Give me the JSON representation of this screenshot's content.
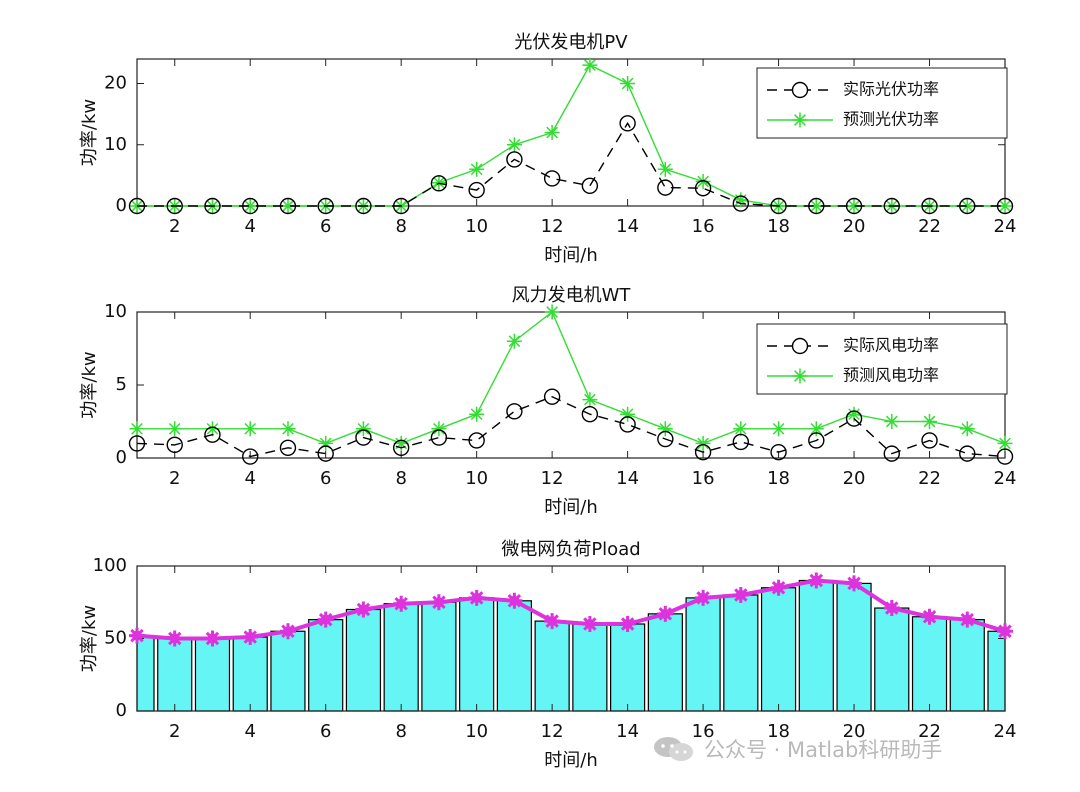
{
  "chart_data": [
    {
      "type": "line",
      "title": "光伏发电机PV",
      "xlabel": "时间/h",
      "ylabel": "功率/kw",
      "xlim": [
        1,
        24
      ],
      "ylim": [
        0,
        24
      ],
      "xticks": [
        2,
        4,
        6,
        8,
        10,
        12,
        14,
        16,
        18,
        20,
        22,
        24
      ],
      "yticks": [
        0,
        10,
        20
      ],
      "legend_position": "top-right",
      "x": [
        1,
        2,
        3,
        4,
        5,
        6,
        7,
        8,
        9,
        10,
        11,
        12,
        13,
        14,
        15,
        16,
        17,
        18,
        19,
        20,
        21,
        22,
        23,
        24
      ],
      "series": [
        {
          "name": "实际光伏功率",
          "style": "black-dashed-circle",
          "color": "#000000",
          "values": [
            0,
            0,
            0,
            0,
            0,
            0,
            0,
            0,
            3.7,
            2.6,
            7.6,
            4.5,
            3.3,
            13.5,
            3.0,
            2.9,
            0.4,
            0,
            0,
            0,
            0,
            0,
            0,
            0
          ]
        },
        {
          "name": "预测光伏功率",
          "style": "green-solid-star",
          "color": "#33dd33",
          "values": [
            0,
            0,
            0,
            0,
            0,
            0,
            0,
            0,
            3.8,
            6.0,
            10.0,
            12.0,
            23.0,
            20.0,
            6.0,
            4.0,
            1.0,
            0,
            0,
            0,
            0,
            0,
            0,
            0
          ]
        }
      ]
    },
    {
      "type": "line",
      "title": "风力发电机WT",
      "xlabel": "时间/h",
      "ylabel": "功率/kw",
      "xlim": [
        1,
        24
      ],
      "ylim": [
        0,
        10
      ],
      "xticks": [
        2,
        4,
        6,
        8,
        10,
        12,
        14,
        16,
        18,
        20,
        22,
        24
      ],
      "yticks": [
        0,
        5,
        10
      ],
      "legend_position": "top-right",
      "x": [
        1,
        2,
        3,
        4,
        5,
        6,
        7,
        8,
        9,
        10,
        11,
        12,
        13,
        14,
        15,
        16,
        17,
        18,
        19,
        20,
        21,
        22,
        23,
        24
      ],
      "series": [
        {
          "name": "实际风电功率",
          "style": "black-dashed-circle",
          "color": "#000000",
          "values": [
            1.0,
            0.9,
            1.6,
            0.1,
            0.7,
            0.3,
            1.4,
            0.7,
            1.4,
            1.2,
            3.2,
            4.2,
            3.0,
            2.3,
            1.3,
            0.4,
            1.1,
            0.4,
            1.2,
            2.7,
            0.3,
            1.2,
            0.3,
            0.1
          ]
        },
        {
          "name": "预测风电功率",
          "style": "green-solid-star",
          "color": "#33dd33",
          "values": [
            2,
            2,
            2,
            2,
            2,
            1,
            2,
            1,
            2,
            3,
            8,
            10,
            4,
            3,
            2,
            1,
            2,
            2,
            2,
            3,
            2.5,
            2.5,
            2,
            1
          ]
        }
      ]
    },
    {
      "type": "bar",
      "title": "微电网负荷Pload",
      "xlabel": "时间/h",
      "ylabel": "功率/kw",
      "xlim": [
        1,
        24
      ],
      "ylim": [
        0,
        100
      ],
      "xticks": [
        2,
        4,
        6,
        8,
        10,
        12,
        14,
        16,
        18,
        20,
        22,
        24
      ],
      "yticks": [
        0,
        50,
        100
      ],
      "x": [
        1,
        2,
        3,
        4,
        5,
        6,
        7,
        8,
        9,
        10,
        11,
        12,
        13,
        14,
        15,
        16,
        17,
        18,
        19,
        20,
        21,
        22,
        23,
        24
      ],
      "series": [
        {
          "name": "bars",
          "color": "#66f5f5",
          "values": [
            52,
            50,
            50,
            51,
            55,
            63,
            70,
            74,
            75,
            78,
            76,
            62,
            60,
            60,
            67,
            78,
            80,
            85,
            90,
            88,
            71,
            65,
            63,
            55
          ]
        },
        {
          "name": "line",
          "color": "#dd33dd",
          "values": [
            52,
            50,
            50,
            51,
            55,
            63,
            70,
            74,
            75,
            78,
            76,
            62,
            60,
            60,
            67,
            78,
            80,
            85,
            90,
            88,
            71,
            65,
            63,
            55
          ]
        }
      ]
    }
  ],
  "watermark": {
    "text": "公众号 · Matlab科研助手",
    "icon": "wechat-icon"
  }
}
